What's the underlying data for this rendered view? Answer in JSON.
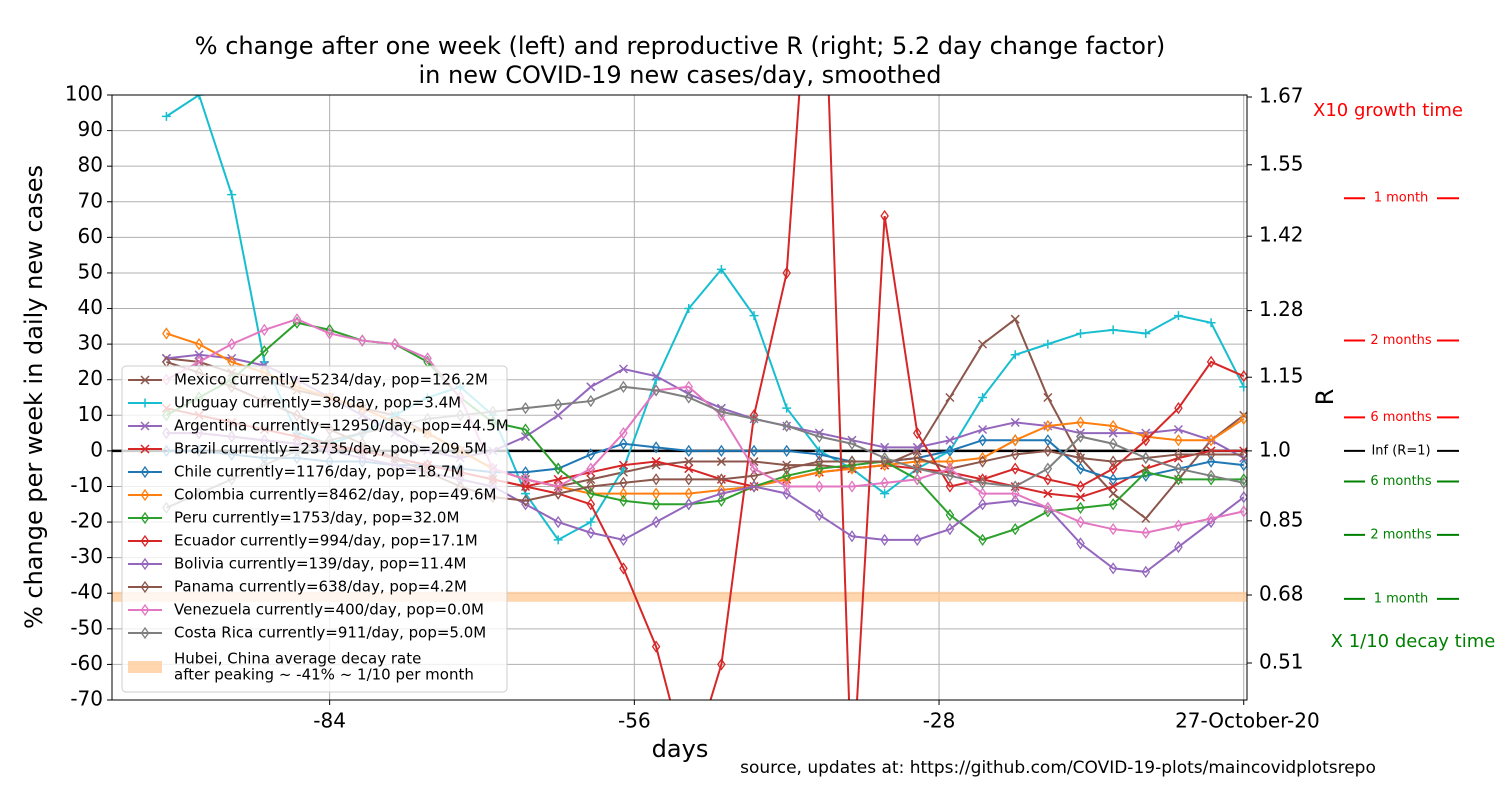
{
  "chart_data": {
    "type": "line",
    "title": [
      "% change after one week (left) and reproductive R (right; 5.2 day change factor)",
      "in new COVID-19 new cases/day, smoothed"
    ],
    "x_label": "days",
    "y_label": "% change per week in daily new cases",
    "y2_label": "R",
    "source": "source, updates at: https://github.com/COVID-19-plots/maincovidplotsrepo",
    "xlim": [
      -104,
      0.3
    ],
    "xticks": [
      -84,
      -56,
      -28,
      {
        "value": 0,
        "label": "27-October-20"
      }
    ],
    "ylim": [
      -70,
      100
    ],
    "yticks": [
      -70,
      -60,
      -50,
      -40,
      -30,
      -20,
      -10,
      0,
      10,
      20,
      30,
      40,
      50,
      60,
      70,
      80,
      90,
      100
    ],
    "y2lim": [
      0.41,
      1.674
    ],
    "y2ticks": [
      0.51,
      0.68,
      0.85,
      {
        "value": 1,
        "label": "1.0"
      },
      1.15,
      1.28,
      1.42,
      1.55,
      1.67
    ],
    "grid": true,
    "legend": "lower left",
    "x": [
      -99,
      -96,
      -93,
      -90,
      -87,
      -84,
      -81,
      -78,
      -75,
      -72,
      -69,
      -66,
      -63,
      -60,
      -57,
      -54,
      -51,
      -48,
      -45,
      -42,
      -39,
      -36,
      -33,
      -30,
      -27,
      -24,
      -21,
      -18,
      -15,
      -12,
      -9,
      -6,
      -3,
      0
    ],
    "series": [
      {
        "name": "Mexico currently=5234/day, pop=126.2M",
        "color": "#8c564b",
        "marker": "x",
        "values": [
          26,
          25,
          22,
          20,
          17,
          15,
          12,
          10,
          5,
          0,
          -5,
          -8,
          -10,
          -8,
          -6,
          -4,
          -3,
          -3,
          -3,
          -4,
          -4,
          -5,
          -4,
          0,
          15,
          30,
          37,
          15,
          -2,
          -12,
          -19,
          -8,
          3,
          10
        ]
      },
      {
        "name": "Uruguay currently=38/day, pop=3.4M",
        "color": "#17becf",
        "marker": "+",
        "values": [
          94,
          100,
          72,
          25,
          5,
          2,
          5,
          10,
          15,
          18,
          10,
          -12,
          -25,
          -20,
          -5,
          20,
          40,
          51,
          38,
          12,
          0,
          -5,
          -12,
          -5,
          0,
          15,
          27,
          30,
          33,
          34,
          33,
          38,
          36,
          18
        ]
      },
      {
        "name": "Argentina currently=12950/day, pop=44.5M",
        "color": "#9467bd",
        "marker": "x",
        "values": [
          26,
          27,
          26,
          24,
          20,
          15,
          10,
          5,
          0,
          -2,
          0,
          4,
          10,
          18,
          23,
          21,
          16,
          12,
          9,
          7,
          5,
          3,
          1,
          1,
          3,
          6,
          8,
          7,
          5,
          5,
          5,
          6,
          3,
          -2
        ]
      },
      {
        "name": "Brazil currently=23735/day, pop=209.5M",
        "color": "#d62728",
        "marker": "x",
        "values": [
          12,
          10,
          8,
          6,
          4,
          2,
          0,
          -2,
          -4,
          -6,
          -8,
          -10,
          -8,
          -6,
          -4,
          -3,
          -5,
          -8,
          -10,
          -8,
          -6,
          -5,
          -4,
          -5,
          -6,
          -8,
          -10,
          -12,
          -13,
          -10,
          -5,
          -2,
          0,
          0
        ]
      },
      {
        "name": "Chile currently=1176/day, pop=18.7M",
        "color": "#1f77b4",
        "marker": "d",
        "values": [
          0,
          0,
          -1,
          -2,
          -2,
          -3,
          -3,
          -4,
          -4,
          -5,
          -6,
          -6,
          -5,
          -1,
          2,
          1,
          0,
          0,
          0,
          0,
          -1,
          -3,
          -3,
          -2,
          0,
          3,
          3,
          3,
          -5,
          -8,
          -7,
          -5,
          -3,
          -4
        ]
      },
      {
        "name": "Colombia currently=8462/day, pop=49.6M",
        "color": "#ff7f0e",
        "marker": "d",
        "values": [
          33,
          30,
          25,
          22,
          18,
          15,
          12,
          8,
          5,
          0,
          -5,
          -8,
          -10,
          -12,
          -12,
          -12,
          -12,
          -11,
          -10,
          -8,
          -6,
          -5,
          -4,
          -3,
          -3,
          -2,
          3,
          7,
          8,
          7,
          4,
          3,
          3,
          9
        ]
      },
      {
        "name": "Peru currently=1753/day, pop=32.0M",
        "color": "#2ca02c",
        "marker": "d",
        "values": [
          10,
          15,
          20,
          28,
          36,
          34,
          31,
          30,
          25,
          15,
          8,
          6,
          -5,
          -12,
          -14,
          -15,
          -15,
          -14,
          -10,
          -7,
          -5,
          -4,
          -3,
          -8,
          -18,
          -25,
          -22,
          -17,
          -16,
          -15,
          -6,
          -8,
          -8,
          -8
        ]
      },
      {
        "name": "Ecuador currently=994/day, pop=17.1M",
        "color": "#d62728",
        "marker": "d",
        "values": [
          5,
          5,
          4,
          3,
          2,
          1,
          0,
          -2,
          -4,
          -6,
          -8,
          -10,
          -12,
          -15,
          -33,
          -55,
          -90,
          -60,
          10,
          50,
          180,
          -95,
          66,
          5,
          -10,
          -8,
          -5,
          -8,
          -10,
          -5,
          3,
          12,
          25,
          21
        ]
      },
      {
        "name": "Bolivia currently=139/day, pop=11.4M",
        "color": "#9467bd",
        "marker": "d",
        "values": [
          5,
          5,
          4,
          3,
          2,
          0,
          -2,
          -4,
          -6,
          -8,
          -10,
          -15,
          -20,
          -23,
          -25,
          -20,
          -15,
          -12,
          -10,
          -12,
          -18,
          -24,
          -25,
          -25,
          -22,
          -15,
          -14,
          -16,
          -26,
          -33,
          -34,
          -27,
          -20,
          -13
        ]
      },
      {
        "name": "Panama currently=638/day, pop=4.2M",
        "color": "#8c564b",
        "marker": "d",
        "values": [
          25,
          22,
          18,
          14,
          10,
          6,
          2,
          -2,
          -6,
          -10,
          -13,
          -14,
          -12,
          -10,
          -9,
          -8,
          -8,
          -8,
          -7,
          -5,
          -3,
          -3,
          -3,
          -2,
          -5,
          -3,
          -1,
          0,
          -2,
          -3,
          -2,
          -1,
          -1,
          -1
        ]
      },
      {
        "name": "Venezuela currently=400/day, pop=0.0M",
        "color": "#e377c2",
        "marker": "d",
        "values": [
          20,
          25,
          30,
          34,
          37,
          33,
          31,
          30,
          26,
          15,
          -5,
          -8,
          -10,
          -5,
          5,
          17,
          18,
          10,
          -5,
          -10,
          -10,
          -10,
          -9,
          -8,
          -5,
          -12,
          -12,
          -16,
          -20,
          -22,
          -23,
          -21,
          -19,
          -17
        ]
      },
      {
        "name": "Costa Rica currently=911/day, pop=5.0M",
        "color": "#7f7f7f",
        "marker": "d",
        "values": [
          -16,
          -12,
          -8,
          -4,
          0,
          3,
          5,
          7,
          9,
          10,
          11,
          12,
          13,
          14,
          18,
          17,
          15,
          11,
          9,
          7,
          4,
          2,
          -2,
          -5,
          -7,
          -9,
          -10,
          -5,
          4,
          2,
          -2,
          -5,
          -7,
          -9
        ]
      }
    ],
    "reference_band": {
      "legend_lines": [
        "Hubei, China average decay rate",
        "after peaking ~ -41% ~ 1/10 per month"
      ],
      "value": -41,
      "color": "#ffcc99"
    },
    "growth_label": "X10 growth time",
    "decay_label": "X 1/10 decay time",
    "time_marks": [
      {
        "label": "1 month",
        "value": 71,
        "color": "#ff0000"
      },
      {
        "label": "2 months",
        "value": 31,
        "color": "#ff0000"
      },
      {
        "label": "6 months",
        "value": 9.4,
        "color": "#ff0000"
      },
      {
        "label": "Inf (R=1)",
        "value": 0,
        "color": "#000000"
      },
      {
        "label": "6 months",
        "value": -8.6,
        "color": "#008000"
      },
      {
        "label": "2 months",
        "value": -23.6,
        "color": "#008000"
      },
      {
        "label": "1 month",
        "value": -41.6,
        "color": "#008000"
      }
    ]
  }
}
